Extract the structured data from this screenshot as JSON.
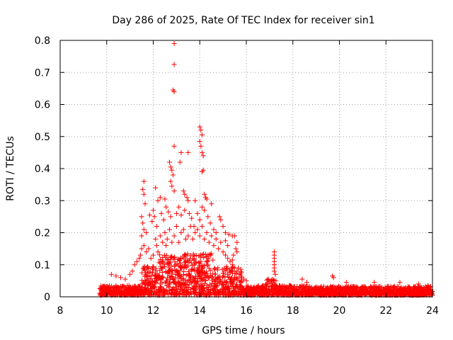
{
  "chart_data": {
    "type": "scatter",
    "title": "Day 286 of 2025, Rate Of TEC Index for receiver sin1",
    "xlabel": "GPS time / hours",
    "ylabel": "ROTI / TECUs",
    "xlim": [
      8,
      24
    ],
    "ylim": [
      0,
      0.8
    ],
    "xticks": [
      8,
      10,
      12,
      14,
      16,
      18,
      20,
      22,
      24
    ],
    "xtick_labels": [
      "8",
      "10",
      "12",
      "14",
      "16",
      "18",
      "20",
      "22",
      "24"
    ],
    "yticks": [
      0,
      0.1,
      0.2,
      0.3,
      0.4,
      0.5,
      0.6,
      0.7,
      0.8
    ],
    "ytick_labels": [
      "0",
      "0.1",
      "0.2",
      "0.3",
      "0.4",
      "0.5",
      "0.6",
      "0.7",
      "0.8"
    ],
    "grid": true,
    "marker": "+",
    "color": "#ff0000",
    "series": [
      {
        "name": "ROTI",
        "points": [
          [
            12.9,
            0.79
          ],
          [
            12.9,
            0.725
          ],
          [
            12.85,
            0.645
          ],
          [
            12.9,
            0.64
          ],
          [
            14.0,
            0.53
          ],
          [
            14.05,
            0.52
          ],
          [
            14.1,
            0.505
          ],
          [
            14.0,
            0.485
          ],
          [
            14.05,
            0.47
          ],
          [
            14.1,
            0.45
          ],
          [
            14.15,
            0.44
          ],
          [
            14.1,
            0.39
          ],
          [
            14.15,
            0.395
          ],
          [
            12.9,
            0.47
          ],
          [
            13.2,
            0.45
          ],
          [
            13.5,
            0.45
          ],
          [
            13.15,
            0.42
          ],
          [
            12.7,
            0.42
          ],
          [
            12.75,
            0.405
          ],
          [
            12.8,
            0.395
          ],
          [
            12.85,
            0.38
          ],
          [
            12.75,
            0.36
          ],
          [
            12.8,
            0.345
          ],
          [
            12.9,
            0.33
          ],
          [
            11.6,
            0.36
          ],
          [
            11.55,
            0.335
          ],
          [
            11.6,
            0.32
          ],
          [
            11.65,
            0.29
          ],
          [
            12.1,
            0.34
          ],
          [
            12.3,
            0.31
          ],
          [
            12.5,
            0.305
          ],
          [
            12.2,
            0.3
          ],
          [
            13.3,
            0.33
          ],
          [
            13.35,
            0.32
          ],
          [
            13.45,
            0.31
          ],
          [
            13.5,
            0.3
          ],
          [
            13.8,
            0.3
          ],
          [
            14.2,
            0.32
          ],
          [
            14.25,
            0.31
          ],
          [
            14.3,
            0.305
          ],
          [
            14.5,
            0.29
          ],
          [
            14.1,
            0.28
          ],
          [
            14.2,
            0.27
          ],
          [
            11.5,
            0.25
          ],
          [
            11.55,
            0.23
          ],
          [
            11.6,
            0.21
          ],
          [
            11.5,
            0.19
          ],
          [
            11.7,
            0.2
          ],
          [
            11.85,
            0.255
          ],
          [
            11.95,
            0.235
          ],
          [
            12.0,
            0.27
          ],
          [
            12.05,
            0.25
          ],
          [
            12.15,
            0.22
          ],
          [
            12.35,
            0.26
          ],
          [
            12.45,
            0.24
          ],
          [
            12.55,
            0.28
          ],
          [
            12.65,
            0.265
          ],
          [
            12.75,
            0.25
          ],
          [
            13.0,
            0.26
          ],
          [
            13.1,
            0.28
          ],
          [
            13.2,
            0.255
          ],
          [
            13.35,
            0.27
          ],
          [
            13.55,
            0.26
          ],
          [
            13.65,
            0.245
          ],
          [
            13.75,
            0.22
          ],
          [
            13.9,
            0.26
          ],
          [
            14.0,
            0.24
          ],
          [
            14.35,
            0.25
          ],
          [
            14.45,
            0.23
          ],
          [
            14.6,
            0.21
          ],
          [
            14.7,
            0.2
          ],
          [
            14.85,
            0.25
          ],
          [
            14.9,
            0.24
          ],
          [
            15.0,
            0.22
          ],
          [
            15.1,
            0.2
          ],
          [
            15.25,
            0.195
          ],
          [
            15.4,
            0.19
          ],
          [
            15.1,
            0.175
          ],
          [
            15.2,
            0.16
          ],
          [
            15.5,
            0.19
          ],
          [
            15.6,
            0.17
          ],
          [
            15.55,
            0.15
          ],
          [
            15.45,
            0.13
          ],
          [
            15.4,
            0.115
          ],
          [
            15.6,
            0.14
          ],
          [
            17.2,
            0.14
          ],
          [
            17.2,
            0.13
          ],
          [
            17.2,
            0.12
          ],
          [
            17.2,
            0.11
          ],
          [
            17.2,
            0.1
          ],
          [
            17.2,
            0.09
          ],
          [
            17.2,
            0.08
          ],
          [
            17.25,
            0.07
          ],
          [
            11.2,
            0.1
          ],
          [
            11.3,
            0.11
          ],
          [
            11.4,
            0.12
          ],
          [
            11.45,
            0.13
          ],
          [
            11.5,
            0.15
          ],
          [
            11.6,
            0.16
          ],
          [
            11.7,
            0.14
          ],
          [
            11.8,
            0.15
          ],
          [
            11.9,
            0.12
          ],
          [
            12.0,
            0.13
          ],
          [
            12.1,
            0.18
          ],
          [
            12.15,
            0.16
          ],
          [
            12.2,
            0.14
          ],
          [
            12.3,
            0.19
          ],
          [
            12.4,
            0.17
          ],
          [
            12.5,
            0.2
          ],
          [
            12.55,
            0.16
          ],
          [
            12.6,
            0.18
          ],
          [
            12.7,
            0.21
          ],
          [
            12.8,
            0.17
          ],
          [
            12.9,
            0.19
          ],
          [
            13.0,
            0.22
          ],
          [
            13.1,
            0.17
          ],
          [
            13.2,
            0.2
          ],
          [
            13.3,
            0.21
          ],
          [
            13.4,
            0.18
          ],
          [
            13.5,
            0.19
          ],
          [
            13.6,
            0.22
          ],
          [
            13.7,
            0.18
          ],
          [
            13.8,
            0.2
          ],
          [
            13.9,
            0.21
          ],
          [
            14.0,
            0.19
          ],
          [
            14.1,
            0.22
          ],
          [
            14.2,
            0.18
          ],
          [
            14.3,
            0.2
          ],
          [
            14.4,
            0.17
          ],
          [
            14.5,
            0.19
          ],
          [
            14.6,
            0.16
          ],
          [
            14.7,
            0.18
          ],
          [
            14.8,
            0.15
          ],
          [
            14.9,
            0.17
          ],
          [
            15.0,
            0.14
          ],
          [
            15.1,
            0.13
          ],
          [
            15.2,
            0.12
          ],
          [
            15.3,
            0.11
          ],
          [
            15.4,
            0.1
          ],
          [
            15.5,
            0.09
          ],
          [
            15.6,
            0.08
          ],
          [
            15.7,
            0.07
          ],
          [
            15.8,
            0.06
          ],
          [
            15.9,
            0.055
          ],
          [
            16.0,
            0.05
          ],
          [
            10.2,
            0.07
          ],
          [
            10.4,
            0.065
          ],
          [
            10.6,
            0.06
          ],
          [
            10.8,
            0.055
          ],
          [
            11.0,
            0.07
          ],
          [
            11.1,
            0.08
          ],
          [
            18.4,
            0.055
          ],
          [
            18.6,
            0.045
          ],
          [
            19.7,
            0.065
          ],
          [
            19.75,
            0.06
          ],
          [
            20.3,
            0.045
          ],
          [
            21.5,
            0.045
          ],
          [
            22.6,
            0.045
          ],
          [
            23.4,
            0.04
          ],
          [
            23.8,
            0.035
          ]
        ]
      }
    ]
  }
}
